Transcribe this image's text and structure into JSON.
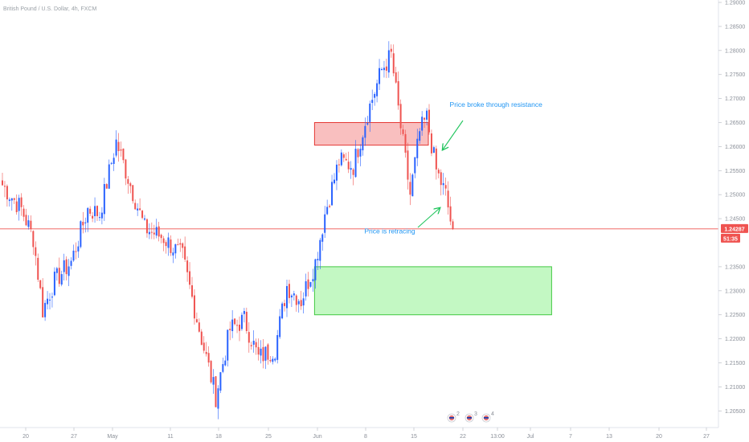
{
  "header": {
    "title": "British Pound / U.S. Dollar, 4h, FXCM"
  },
  "chart_data": {
    "type": "candlestick",
    "symbol": "GBPUSD",
    "timeframe": "4h",
    "ylim": [
      1.2,
      1.29
    ],
    "y_ticks": [
      "1.29000",
      "1.28500",
      "1.28000",
      "1.27500",
      "1.27000",
      "1.26500",
      "1.26000",
      "1.25500",
      "1.25000",
      "1.24500",
      "1.23500",
      "1.23000",
      "1.22500",
      "1.22000",
      "1.21500",
      "1.21000",
      "1.20500"
    ],
    "x_ticks": [
      "20",
      "27",
      "May",
      "11",
      "18",
      "25",
      "Jun",
      "8",
      "15",
      "22",
      "13:00",
      "Jul",
      "7",
      "13",
      "20",
      "27"
    ],
    "current_price": {
      "value": 1.24287,
      "label": "1.24287",
      "countdown": "51:35"
    },
    "colors": {
      "up": "#2962ff",
      "down": "#ef5350",
      "resistance": "#f8b4b4",
      "support": "#b4f6b4",
      "annotation": "#2196f3"
    },
    "waypoints": [
      {
        "bar": 0,
        "price": 1.252
      },
      {
        "bar": 8,
        "price": 1.247
      },
      {
        "bar": 13,
        "price": 1.241
      },
      {
        "bar": 17,
        "price": 1.226
      },
      {
        "bar": 22,
        "price": 1.232
      },
      {
        "bar": 29,
        "price": 1.236
      },
      {
        "bar": 36,
        "price": 1.247
      },
      {
        "bar": 41,
        "price": 1.246
      },
      {
        "bar": 48,
        "price": 1.261
      },
      {
        "bar": 54,
        "price": 1.252
      },
      {
        "bar": 60,
        "price": 1.243
      },
      {
        "bar": 68,
        "price": 1.241
      },
      {
        "bar": 76,
        "price": 1.237
      },
      {
        "bar": 84,
        "price": 1.22
      },
      {
        "bar": 90,
        "price": 1.208
      },
      {
        "bar": 96,
        "price": 1.222
      },
      {
        "bar": 102,
        "price": 1.224
      },
      {
        "bar": 108,
        "price": 1.216
      },
      {
        "bar": 115,
        "price": 1.218
      },
      {
        "bar": 120,
        "price": 1.231
      },
      {
        "bar": 126,
        "price": 1.228
      },
      {
        "bar": 132,
        "price": 1.236
      },
      {
        "bar": 136,
        "price": 1.246
      },
      {
        "bar": 142,
        "price": 1.257
      },
      {
        "bar": 148,
        "price": 1.256
      },
      {
        "bar": 154,
        "price": 1.267
      },
      {
        "bar": 160,
        "price": 1.276
      },
      {
        "bar": 164,
        "price": 1.279
      },
      {
        "bar": 168,
        "price": 1.264
      },
      {
        "bar": 172,
        "price": 1.25
      },
      {
        "bar": 176,
        "price": 1.263
      },
      {
        "bar": 179,
        "price": 1.266
      },
      {
        "bar": 183,
        "price": 1.255
      },
      {
        "bar": 187,
        "price": 1.25
      },
      {
        "bar": 190,
        "price": 1.242
      }
    ],
    "zones": [
      {
        "name": "resistance",
        "from_bar": 132,
        "to_bar": 180,
        "top": 1.265,
        "bottom": 1.2603
      },
      {
        "name": "support",
        "from_bar": 132,
        "to_bar": 232,
        "top": 1.235,
        "bottom": 1.225
      }
    ],
    "annotations": [
      {
        "text": "Price broke through resistance",
        "at_bar": 189,
        "price": 1.2683,
        "arrow_to_bar": 184,
        "arrow_to_price": 1.2585
      },
      {
        "text": "Price is retracing",
        "at_bar": 153,
        "price": 1.2419,
        "arrow_to_bar": 183,
        "arrow_to_price": 1.2465
      }
    ],
    "events": [
      "2",
      "3",
      "4"
    ]
  }
}
